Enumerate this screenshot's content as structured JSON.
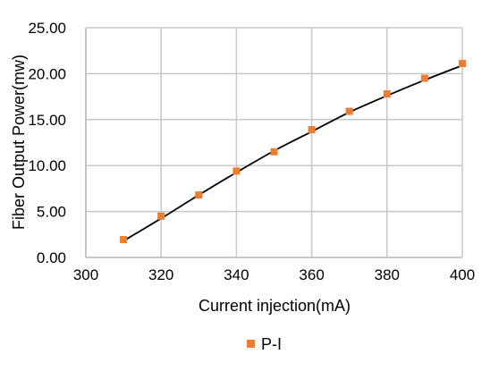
{
  "chart_data": {
    "type": "scatter",
    "title": "",
    "xlabel": "Current injection(mA)",
    "ylabel": "Fiber Output Power(mw)",
    "xlim": [
      300,
      400
    ],
    "ylim": [
      0,
      25
    ],
    "x_ticks": [
      300,
      320,
      340,
      360,
      380,
      400
    ],
    "y_ticks": [
      0,
      5,
      10,
      15,
      20,
      25
    ],
    "x_tick_labels": [
      "300",
      "320",
      "340",
      "360",
      "380",
      "400"
    ],
    "y_tick_labels": [
      "0.00",
      "5.00",
      "10.00",
      "15.00",
      "20.00",
      "25.00"
    ],
    "grid": true,
    "legend_position": "bottom",
    "series": [
      {
        "name": "P-I",
        "type": "scatter",
        "color": "#ED7D31",
        "marker": "square",
        "x": [
          310,
          320,
          330,
          340,
          350,
          360,
          370,
          380,
          390,
          400
        ],
        "y": [
          1.95,
          4.5,
          6.8,
          9.4,
          11.5,
          13.9,
          15.9,
          17.8,
          19.5,
          21.1
        ]
      }
    ],
    "trendline": {
      "color": "#000000",
      "x": [
        310,
        320,
        330,
        340,
        350,
        360,
        370,
        380,
        390,
        400
      ],
      "y": [
        1.8,
        4.25,
        6.8,
        9.25,
        11.6,
        13.7,
        15.8,
        17.6,
        19.3,
        20.9
      ]
    }
  }
}
